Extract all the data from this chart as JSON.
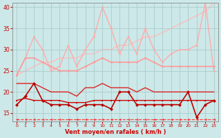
{
  "xlabel": "Vent moyen/en rafales ( km/h )",
  "xlim": [
    -0.5,
    23.5
  ],
  "ylim": [
    13,
    41
  ],
  "yticks": [
    15,
    20,
    25,
    30,
    35,
    40
  ],
  "xticks": [
    0,
    1,
    2,
    3,
    4,
    5,
    6,
    7,
    8,
    9,
    10,
    11,
    12,
    13,
    14,
    15,
    16,
    17,
    18,
    19,
    20,
    21,
    22,
    23
  ],
  "bg_color": "#cce8e8",
  "grid_color": "#aacccc",
  "lines": [
    {
      "y": [
        13.5,
        13.5,
        13.5,
        13.5,
        13.5,
        13.5,
        13.5,
        13.5,
        13.5,
        13.5,
        13.5,
        13.5,
        13.5,
        13.5,
        13.5,
        13.5,
        13.5,
        13.5,
        13.5,
        13.5,
        13.5,
        13.5,
        13.5,
        13.5
      ],
      "color": "#ff3333",
      "lw": 0.8,
      "marker": "<",
      "ms": 2.5,
      "ls": "--",
      "zorder": 2
    },
    {
      "y": [
        18,
        18.5,
        18,
        18,
        18,
        18,
        17.5,
        17.5,
        17.5,
        18,
        18,
        18,
        18,
        18,
        18,
        18,
        18,
        18,
        18,
        18,
        18,
        18,
        18,
        18
      ],
      "color": "#cc0000",
      "lw": 1.0,
      "marker": "s",
      "ms": 2.0,
      "ls": "-",
      "zorder": 5
    },
    {
      "y": [
        17,
        19,
        22,
        18,
        17,
        17,
        17,
        16,
        17,
        17,
        17,
        16,
        20,
        20,
        17,
        17,
        17,
        17,
        17,
        17,
        20,
        14,
        17,
        18
      ],
      "color": "#bb0000",
      "lw": 1.2,
      "marker": "D",
      "ms": 2.5,
      "ls": "-",
      "zorder": 6
    },
    {
      "y": [
        22,
        22,
        22,
        21,
        20,
        20,
        20,
        19,
        21,
        21,
        22,
        21,
        21,
        21,
        20,
        21,
        20,
        20,
        20,
        20,
        20,
        20,
        20,
        20
      ],
      "color": "#dd2222",
      "lw": 1.0,
      "marker": null,
      "ms": 0,
      "ls": "-",
      "zorder": 4
    },
    {
      "y": [
        24,
        28,
        28,
        27,
        26,
        25,
        25,
        25,
        26,
        27,
        28,
        27,
        27,
        27,
        27,
        28,
        27,
        26,
        26,
        26,
        26,
        26,
        26,
        26
      ],
      "color": "#ff9999",
      "lw": 1.2,
      "marker": "o",
      "ms": 2.0,
      "ls": "-",
      "zorder": 3
    },
    {
      "y": [
        24,
        28,
        33,
        30,
        25,
        26,
        31,
        26,
        30,
        33,
        40,
        35,
        29,
        33,
        29,
        35,
        30,
        27,
        29,
        30,
        30,
        31,
        41,
        25
      ],
      "color": "#ffaaaa",
      "lw": 1.0,
      "marker": "o",
      "ms": 2.0,
      "ls": "-",
      "zorder": 2
    },
    {
      "y": [
        24,
        25,
        26,
        27,
        27,
        28,
        28,
        28,
        29,
        29,
        30,
        30,
        31,
        31,
        32,
        33,
        33,
        34,
        35,
        36,
        37,
        38,
        39,
        41
      ],
      "color": "#ffbbbb",
      "lw": 1.0,
      "marker": null,
      "ms": 0,
      "ls": "-",
      "zorder": 1
    }
  ]
}
